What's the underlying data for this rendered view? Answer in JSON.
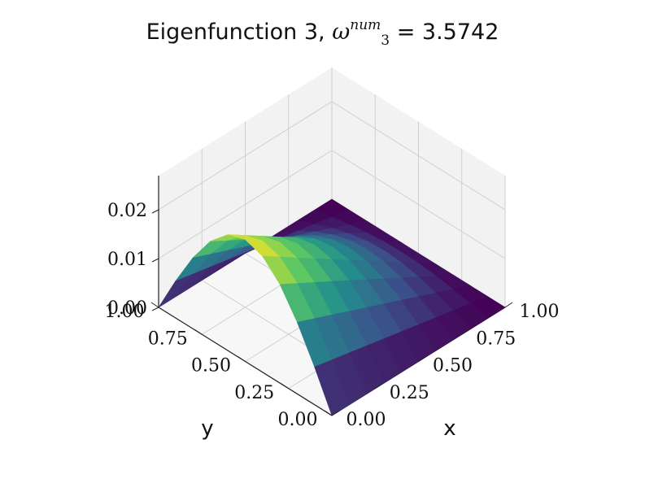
{
  "title": {
    "prefix": "Eigenfunction 3, ",
    "symbol": "ω",
    "superscript": "num",
    "subscript": "3",
    "equals": " = ",
    "value": "3.5742"
  },
  "colors": {
    "pane": "#f2f2f2",
    "grid": "#cfcfcf",
    "colormap": "viridis",
    "viridis_stops": [
      "#440154",
      "#3b528b",
      "#21918c",
      "#5ec962",
      "#fde725"
    ]
  },
  "chart_data": {
    "type": "surface3d",
    "title": "Eigenfunction 3, ω_3^num = 3.5742",
    "xlabel": "x",
    "ylabel": "y",
    "zlabel": "",
    "x_ticks": [
      "0.00",
      "0.25",
      "0.50",
      "0.75",
      "1.00"
    ],
    "y_ticks": [
      "0.00",
      "0.25",
      "0.50",
      "0.75",
      "1.00"
    ],
    "z_ticks": [
      "0.00",
      "0.01",
      "0.02"
    ],
    "xlim": [
      0,
      1
    ],
    "ylim": [
      0,
      1
    ],
    "zlim": [
      0,
      0.027
    ],
    "grid": true,
    "colormap": "viridis",
    "function": "u(x,y) = 0.025 * sin(pi * y) * (1 - x)",
    "x": [
      0.0,
      0.1,
      0.2,
      0.3,
      0.4,
      0.5,
      0.6,
      0.7,
      0.8,
      0.9,
      1.0
    ],
    "y": [
      0.0,
      0.1,
      0.2,
      0.3,
      0.4,
      0.5,
      0.6,
      0.7,
      0.8,
      0.9,
      1.0
    ],
    "z": [
      [
        0.0,
        0.00773,
        0.01469,
        0.02023,
        0.02378,
        0.025,
        0.02378,
        0.02023,
        0.01469,
        0.00773,
        0.0
      ],
      [
        0.0,
        0.00695,
        0.01322,
        0.0182,
        0.0214,
        0.0225,
        0.0214,
        0.0182,
        0.01322,
        0.00695,
        0.0
      ],
      [
        0.0,
        0.00618,
        0.01176,
        0.01618,
        0.01902,
        0.02,
        0.01902,
        0.01618,
        0.01176,
        0.00618,
        0.0
      ],
      [
        0.0,
        0.00541,
        0.01029,
        0.01416,
        0.01664,
        0.0175,
        0.01664,
        0.01416,
        0.01029,
        0.00541,
        0.0
      ],
      [
        0.0,
        0.00464,
        0.00882,
        0.01214,
        0.01427,
        0.015,
        0.01427,
        0.01214,
        0.00882,
        0.00464,
        0.0
      ],
      [
        0.0,
        0.00386,
        0.00735,
        0.01011,
        0.01189,
        0.0125,
        0.01189,
        0.01011,
        0.00735,
        0.00386,
        0.0
      ],
      [
        0.0,
        0.00309,
        0.00588,
        0.00809,
        0.00951,
        0.01,
        0.00951,
        0.00809,
        0.00588,
        0.00309,
        0.0
      ],
      [
        0.0,
        0.00232,
        0.00441,
        0.00607,
        0.00713,
        0.0075,
        0.00713,
        0.00607,
        0.00441,
        0.00232,
        0.0
      ],
      [
        0.0,
        0.00155,
        0.00294,
        0.00405,
        0.00476,
        0.005,
        0.00476,
        0.00405,
        0.00294,
        0.00155,
        0.0
      ],
      [
        0.0,
        0.00077,
        0.00147,
        0.00202,
        0.00238,
        0.0025,
        0.00238,
        0.00202,
        0.00147,
        0.00077,
        0.0
      ],
      [
        0.0,
        0.0,
        0.0,
        0.0,
        0.0,
        0.0,
        0.0,
        0.0,
        0.0,
        0.0,
        0.0
      ]
    ]
  }
}
